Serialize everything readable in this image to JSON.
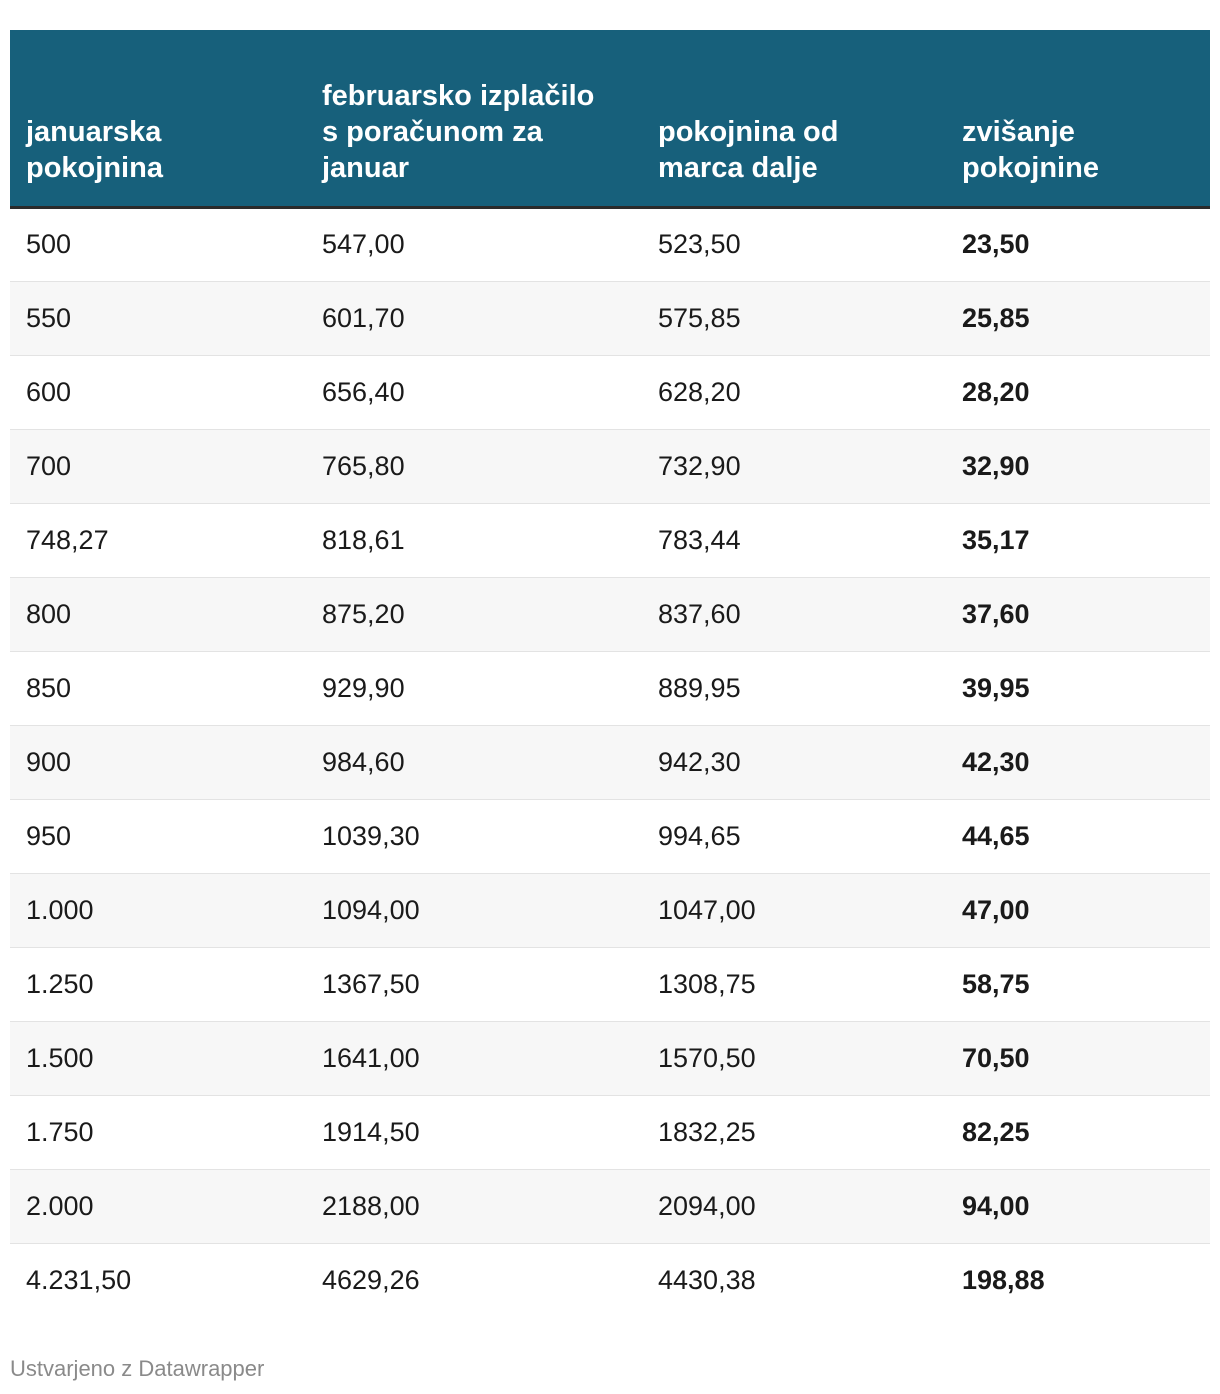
{
  "chart_data": {
    "type": "table",
    "columns": [
      "januarska pokojnina",
      "februarsko izplačilo s poračunom za januar",
      "pokojnina od marca dalje",
      "zvišanje pokojnine"
    ],
    "rows": [
      [
        "500",
        "547,00",
        "523,50",
        "23,50"
      ],
      [
        "550",
        "601,70",
        "575,85",
        "25,85"
      ],
      [
        "600",
        "656,40",
        "628,20",
        "28,20"
      ],
      [
        "700",
        "765,80",
        "732,90",
        "32,90"
      ],
      [
        "748,27",
        "818,61",
        "783,44",
        "35,17"
      ],
      [
        "800",
        "875,20",
        "837,60",
        "37,60"
      ],
      [
        "850",
        "929,90",
        "889,95",
        "39,95"
      ],
      [
        "900",
        "984,60",
        "942,30",
        "42,30"
      ],
      [
        "950",
        "1039,30",
        "994,65",
        "44,65"
      ],
      [
        "1.000",
        "1094,00",
        "1047,00",
        "47,00"
      ],
      [
        "1.250",
        "1367,50",
        "1308,75",
        "58,75"
      ],
      [
        "1.500",
        "1641,00",
        "1570,50",
        "70,50"
      ],
      [
        "1.750",
        "1914,50",
        "1832,25",
        "82,25"
      ],
      [
        "2.000",
        "2188,00",
        "2094,00",
        "94,00"
      ],
      [
        "4.231,50",
        "4629,26",
        "4430,38",
        "198,88"
      ]
    ],
    "bold_column": 3
  },
  "colors": {
    "header_bg": "#17607b",
    "header_text": "#ffffff",
    "stripe": "#f7f7f7"
  },
  "footer": {
    "credit": "Ustvarjeno z Datawrapper"
  }
}
